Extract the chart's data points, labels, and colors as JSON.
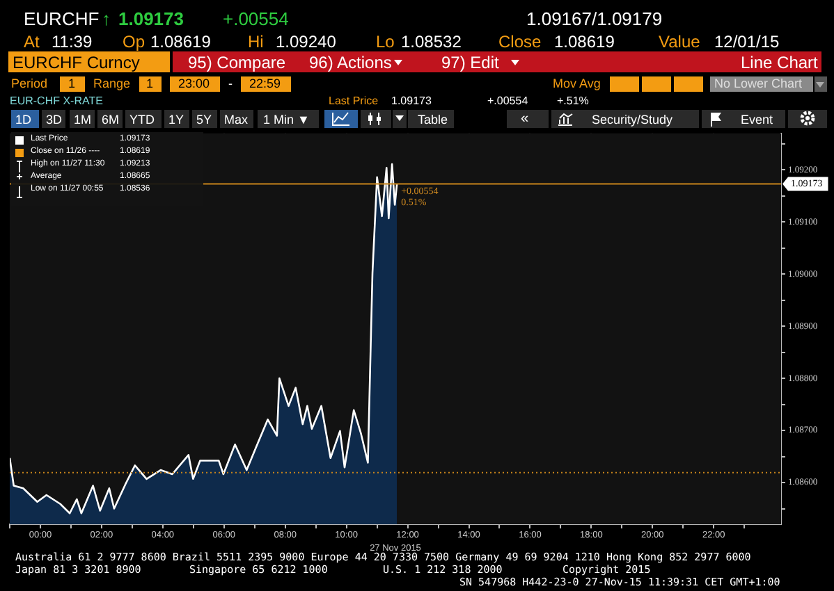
{
  "chart_data": {
    "type": "area",
    "xlabel": "27 Nov 2015",
    "x": [
      -1.0,
      -0.87,
      -0.56,
      -0.1,
      0.2,
      0.65,
      0.96,
      1.19,
      1.34,
      1.72,
      1.95,
      2.25,
      2.41,
      2.79,
      3.09,
      3.47,
      3.93,
      4.31,
      4.84,
      4.99,
      5.22,
      5.83,
      5.98,
      6.36,
      6.74,
      7.05,
      7.43,
      7.73,
      7.81,
      8.11,
      8.34,
      8.57,
      8.72,
      8.87,
      9.18,
      9.48,
      9.79,
      9.94,
      10.24,
      10.47,
      10.7,
      10.85,
      11.0,
      11.16,
      11.31,
      11.38,
      11.49,
      11.58,
      11.65
    ],
    "series": [
      {
        "color": "#ffffff",
        "values": [
          1.08647,
          1.08594,
          1.08589,
          1.08563,
          1.08576,
          1.08559,
          1.08541,
          1.08568,
          1.08541,
          1.08594,
          1.08546,
          1.08589,
          1.0855,
          1.08598,
          1.08633,
          1.08607,
          1.08624,
          1.08616,
          1.08653,
          1.08607,
          1.08642,
          1.08642,
          1.08616,
          1.08673,
          1.08624,
          1.08668,
          1.08721,
          1.0869,
          1.088,
          1.08747,
          1.08782,
          1.08712,
          1.08747,
          1.08703,
          1.08747,
          1.08647,
          1.08699,
          1.08629,
          1.08739,
          1.08695,
          1.08638,
          1.09002,
          1.09186,
          1.09111,
          1.09204,
          1.09107,
          1.09211,
          1.09133,
          1.09173
        ]
      }
    ],
    "xlim": [
      -1,
      24.2
    ],
    "xticks": [
      {
        "value": -1,
        "label": null
      },
      {
        "value": 0,
        "label": "00:00"
      },
      {
        "value": 1,
        "label": null
      },
      {
        "value": 2,
        "label": "02:00"
      },
      {
        "value": 3,
        "label": null
      },
      {
        "value": 4,
        "label": "04:00"
      },
      {
        "value": 5,
        "label": null
      },
      {
        "value": 6,
        "label": "06:00"
      },
      {
        "value": 7,
        "label": null
      },
      {
        "value": 8,
        "label": "08:00"
      },
      {
        "value": 9,
        "label": null
      },
      {
        "value": 10,
        "label": "10:00"
      },
      {
        "value": 11,
        "label": null
      },
      {
        "value": 12,
        "label": "12:00"
      },
      {
        "value": 13,
        "label": null
      },
      {
        "value": 14,
        "label": "14:00"
      },
      {
        "value": 15,
        "label": null
      },
      {
        "value": 16,
        "label": "16:00"
      },
      {
        "value": 17,
        "label": null
      },
      {
        "value": 18,
        "label": "18:00"
      },
      {
        "value": 19,
        "label": null
      },
      {
        "value": 20,
        "label": "20:00"
      },
      {
        "value": 21,
        "label": null
      },
      {
        "value": 22,
        "label": "22:00"
      },
      {
        "value": 23,
        "label": null
      }
    ],
    "ylim": [
      1.0852,
      1.0927
    ],
    "yticks": [
      {
        "value": 1.0855,
        "label": null
      },
      {
        "value": 1.086,
        "label": "1.08600"
      },
      {
        "value": 1.0865,
        "label": null
      },
      {
        "value": 1.087,
        "label": "1.08700"
      },
      {
        "value": 1.0875,
        "label": null
      },
      {
        "value": 1.088,
        "label": "1.08800"
      },
      {
        "value": 1.0885,
        "label": null
      },
      {
        "value": 1.089,
        "label": "1.08900"
      },
      {
        "value": 1.0895,
        "label": null
      },
      {
        "value": 1.09,
        "label": "1.09000"
      },
      {
        "value": 1.0905,
        "label": null
      },
      {
        "value": 1.091,
        "label": "1.09100"
      },
      {
        "value": 1.0915,
        "label": null
      },
      {
        "value": 1.092,
        "label": "1.09200"
      },
      {
        "value": 1.0925,
        "label": null
      }
    ],
    "grid": true,
    "legend": false,
    "marker": "none",
    "ref_lines": [
      {
        "axis": "y",
        "value": 1.09173,
        "label": "1.09173",
        "color": "#c8841a",
        "line_style": "solid"
      },
      {
        "axis": "y",
        "value": 1.08619,
        "color": "#c8841a",
        "line_style": "dotted"
      }
    ],
    "annotations": [
      {
        "text": "+0.00554",
        "x": 11.65,
        "y": 1.09173
      },
      {
        "text": "0.51%",
        "x": 11.65,
        "y": 1.09173
      },
      "EURCHF",
      "↑",
      "1.09173",
      "+.00554",
      "1.09167/1.09179",
      "At",
      "11:39",
      "Op",
      "1.08619",
      "Hi",
      "1.09240",
      "Lo",
      "1.08532",
      "Close",
      "1.08619",
      "Value",
      "12/01/15",
      "EURCHF Curncy",
      "95) Compare",
      "96) Actions",
      "97) Edit",
      "Line Chart",
      "Period",
      "1",
      "Range",
      "1",
      "23:00",
      "-",
      "22:59",
      "Mov Avg",
      "No Lower Chart",
      "EUR-CHF X-RATE",
      "Last Price",
      "1.09173",
      "+.00554",
      "+.51%",
      "1D",
      "3D",
      "1M",
      "6M",
      "YTD",
      "1Y",
      "5Y",
      "Max",
      "1 Min ▼",
      "Table",
      "«",
      "Security/Study",
      "Event",
      "Last Price",
      "1.09173",
      "Close on 11/26 ----",
      "1.08619",
      "High on 11/27 11:30",
      "1.09213",
      "Average",
      "1.08665",
      "Low on 11/27 00:55",
      "1.08536",
      "Australia 61 2 9777 8600 Brazil 5511 2395 9000 Europe 44 20 7330 7500 Germany 49 69 9204 1210 Hong Kong 852 2977 6000",
      "Japan 81 3 3201 8900",
      "Singapore 65 6212 1000",
      "U.S. 1 212 318 2000",
      "Copyright 2015",
      "SN 547968 H442-23-0 27-Nov-15 11:39:31 CET  GMT+1:00"
    ]
  }
}
